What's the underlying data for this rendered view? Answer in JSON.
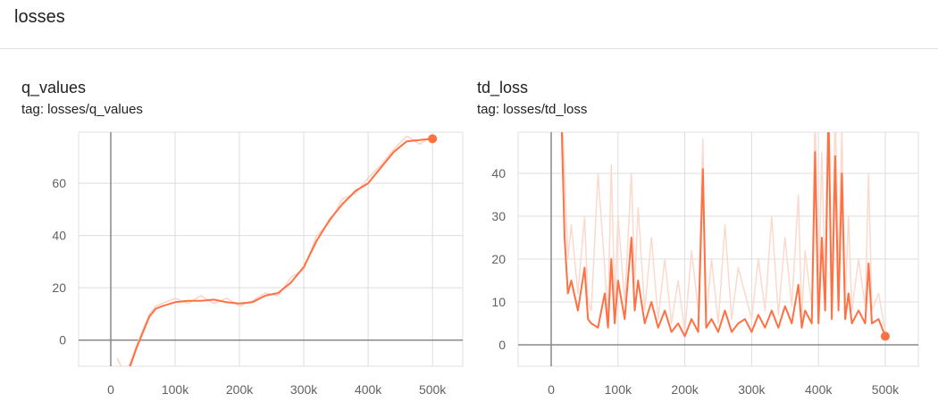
{
  "header": {
    "title": "losses"
  },
  "chart_data": [
    {
      "type": "line",
      "title": "q_values",
      "subtitle": "tag: losses/q_values",
      "x": [
        10000,
        20000,
        30000,
        40000,
        50000,
        60000,
        70000,
        80000,
        100000,
        120000,
        140000,
        160000,
        180000,
        200000,
        220000,
        240000,
        260000,
        280000,
        300000,
        320000,
        340000,
        360000,
        380000,
        400000,
        420000,
        440000,
        460000,
        480000,
        500000
      ],
      "series": [
        {
          "color": "#fbd3c4",
          "values": [
            -7,
            -12,
            -9,
            -2,
            4,
            10,
            13,
            14,
            16,
            14,
            17,
            14,
            16,
            13,
            15,
            18,
            17,
            24,
            27,
            40,
            45,
            54,
            56,
            62,
            67,
            73,
            78,
            75,
            78
          ]
        },
        {
          "color": "#ff7043",
          "values": [
            -8,
            null,
            -10,
            -3,
            3,
            9,
            12,
            13,
            14.5,
            15,
            15,
            15.5,
            14.5,
            14,
            14.5,
            17,
            18,
            22,
            28,
            38,
            46,
            52,
            57,
            60,
            66,
            72,
            76,
            76.5,
            77
          ]
        }
      ],
      "xlim": [
        -50000,
        547000
      ],
      "ylim": [
        -10,
        79.5
      ],
      "xticks": [
        0,
        {
          "value": 100000,
          "label": "100k"
        },
        {
          "value": 200000,
          "label": "200k"
        },
        {
          "value": 300000,
          "label": "300k"
        },
        {
          "value": 400000,
          "label": "400k"
        },
        {
          "value": 500000,
          "label": "500k"
        }
      ],
      "yticks": [
        0,
        20,
        40,
        60
      ],
      "grid": true
    },
    {
      "type": "line",
      "title": "td_loss",
      "subtitle": "tag: losses/td_loss",
      "x": [
        15000,
        20000,
        25000,
        30000,
        40000,
        50000,
        55000,
        60000,
        70000,
        80000,
        85000,
        90000,
        95000,
        100000,
        110000,
        120000,
        125000,
        130000,
        140000,
        150000,
        160000,
        170000,
        180000,
        190000,
        200000,
        210000,
        220000,
        227000,
        232000,
        240000,
        250000,
        260000,
        270000,
        280000,
        290000,
        300000,
        310000,
        320000,
        330000,
        340000,
        350000,
        360000,
        370000,
        375000,
        380000,
        390000,
        395000,
        400000,
        405000,
        410000,
        415000,
        420000,
        425000,
        430000,
        435000,
        440000,
        445000,
        450000,
        460000,
        470000,
        475000,
        480000,
        490000,
        500000
      ],
      "series": [
        {
          "color": "#fbd9cc",
          "values": [
            60,
            40,
            20,
            28,
            12,
            30,
            10,
            8,
            40,
            18,
            6,
            42,
            9,
            30,
            10,
            40,
            14,
            32,
            8,
            25,
            6,
            20,
            5,
            15,
            3,
            22,
            8,
            48,
            6,
            20,
            5,
            28,
            6,
            18,
            12,
            6,
            20,
            8,
            30,
            7,
            25,
            9,
            35,
            6,
            22,
            9,
            55,
            10,
            45,
            14,
            60,
            12,
            55,
            18,
            50,
            10,
            30,
            8,
            20,
            9,
            40,
            8,
            12,
            3
          ]
        },
        {
          "color": "#ff7043",
          "values": [
            55,
            25,
            12,
            15,
            8,
            18,
            6,
            5,
            4,
            12,
            4,
            20,
            5,
            15,
            6,
            25,
            8,
            15,
            5,
            10,
            4,
            8,
            3,
            5,
            2,
            6,
            3,
            41,
            4,
            6,
            3,
            8,
            3,
            5,
            6,
            3,
            7,
            4,
            8,
            4,
            9,
            5,
            14,
            4,
            8,
            5,
            45,
            5,
            25,
            8,
            55,
            6,
            44,
            8,
            40,
            6,
            12,
            5,
            8,
            5,
            19,
            5,
            6,
            2
          ]
        }
      ],
      "xlim": [
        -49500,
        549500
      ],
      "ylim": [
        -5,
        49.6
      ],
      "xticks": [
        0,
        {
          "value": 100000,
          "label": "100k"
        },
        {
          "value": 200000,
          "label": "200k"
        },
        {
          "value": 300000,
          "label": "300k"
        },
        {
          "value": 400000,
          "label": "400k"
        },
        {
          "value": 500000,
          "label": "500k"
        }
      ],
      "yticks": [
        0,
        10,
        20,
        30,
        40
      ],
      "grid": true
    }
  ]
}
